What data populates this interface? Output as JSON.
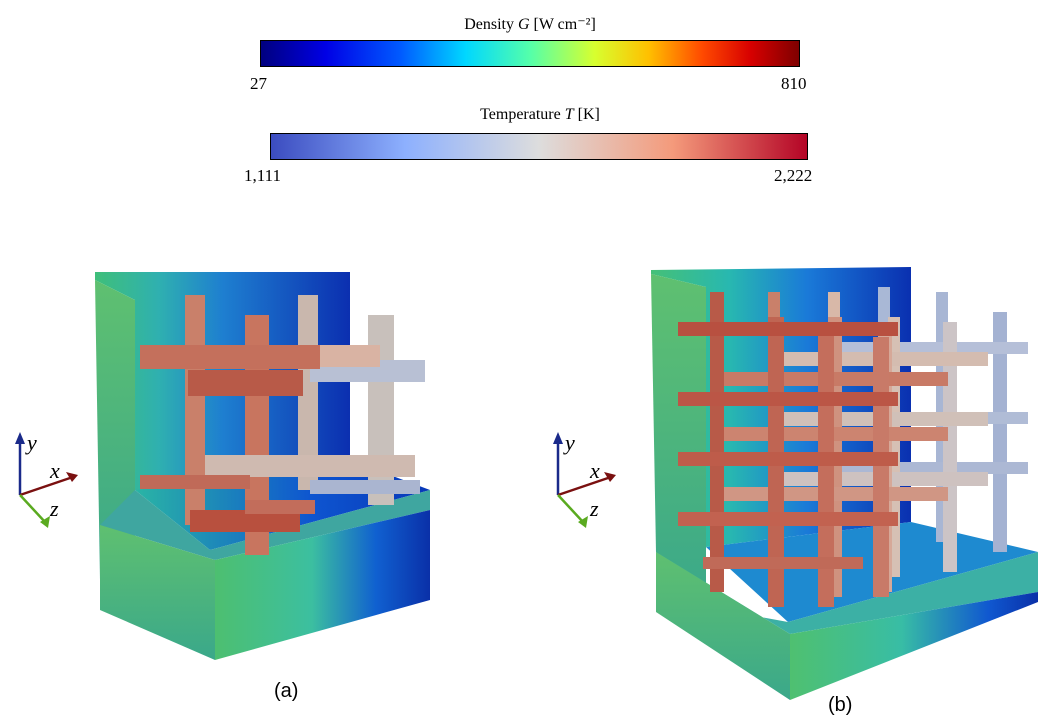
{
  "colorbars": [
    {
      "title_prefix": "Density ",
      "title_var": "G",
      "title_unit": " [W cm⁻²]",
      "min_label": "27",
      "max_label": "810",
      "colormap": [
        "#00007f",
        "#0000e5",
        "#005bff",
        "#00d7ff",
        "#54ffaa",
        "#d7ff2f",
        "#ffc000",
        "#ff4a00",
        "#d70000",
        "#7f0000"
      ]
    },
    {
      "title_prefix": "Temperature ",
      "title_var": "T",
      "title_unit": " [K]",
      "min_label": "1,111",
      "max_label": "2,222",
      "colormap": [
        "#3b4cc0",
        "#8db0fe",
        "#dddddd",
        "#f49a7b",
        "#b40426"
      ]
    }
  ],
  "panels": [
    {
      "label": "(a)",
      "lattice": "2x2x2"
    },
    {
      "label": "(b)",
      "lattice": "4x4x4"
    }
  ],
  "axes_triad": {
    "x": "x",
    "y": "y",
    "z": "z"
  }
}
